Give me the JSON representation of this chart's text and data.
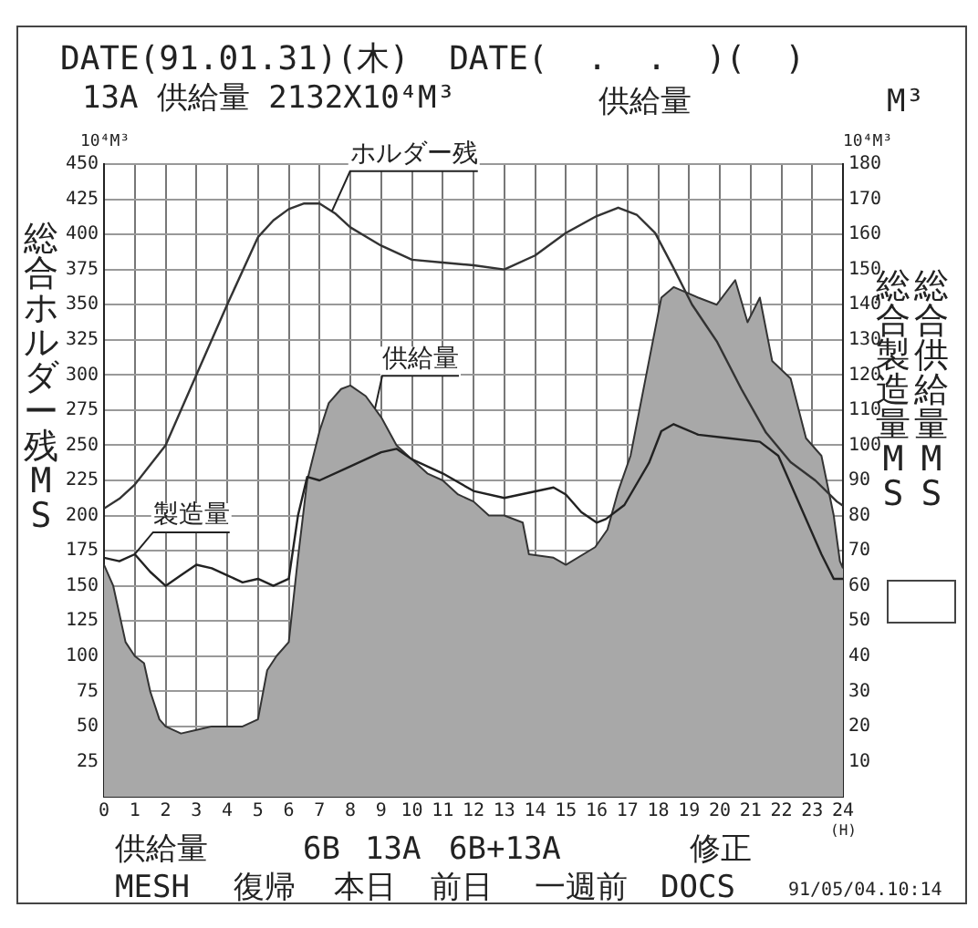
{
  "chart_data": {
    "type": "line",
    "title": "DATE(91.01.31)(木)  DATE(  .  .  )(  )",
    "subtitle": "13A 供給量 2132X10⁴M³",
    "xlabel": "(H)",
    "ylabel": "総合ホルダー残MS",
    "y2label": "総合製造量MS",
    "annotations": [
      "10⁴M³",
      "10⁴M³",
      "供給量",
      "M³",
      "総合供給量MS",
      "供給量",
      "6B",
      "13A",
      "6B+13A",
      "修正",
      "MESH",
      "復帰",
      "本日",
      "前日",
      "一週前",
      "DOCS",
      "91/05/04.10:14"
    ],
    "series": [
      {
        "name": "供給量",
        "type": "area",
        "axis": "y2",
        "color": "#a8a8a8",
        "x": [
          0,
          0.3,
          0.7,
          1,
          1.3,
          1.5,
          1.8,
          2,
          2.5,
          3,
          3.5,
          4,
          4.5,
          5,
          5.3,
          5.6,
          6,
          6.3,
          6.6,
          7,
          7.3,
          7.7,
          8,
          8.5,
          9,
          9.5,
          10,
          10.5,
          11,
          11.5,
          12,
          12.5,
          13,
          13.6,
          13.8,
          14.6,
          15,
          15.95,
          16.35,
          16.7,
          17.1,
          17.3,
          17.7,
          18.1,
          18.5,
          19.3,
          19.9,
          20.5,
          20.9,
          21.3,
          21.7,
          22.3,
          22.8,
          23.3,
          23.7,
          23.9,
          24
        ],
        "values": [
          66,
          60,
          44,
          40,
          38,
          30,
          22,
          20,
          18,
          19,
          20,
          20,
          20,
          22,
          36,
          40,
          44,
          68,
          90,
          104,
          112,
          116,
          117,
          114,
          108,
          100,
          96,
          92,
          90,
          86,
          84,
          80,
          80,
          78,
          69,
          68,
          66,
          71,
          76,
          87,
          97,
          106,
          124,
          142,
          145,
          142,
          140,
          147,
          135,
          142,
          124,
          119,
          102,
          97,
          80,
          67,
          65
        ]
      },
      {
        "name": "ホルダー残",
        "type": "line",
        "color": "#333333",
        "x": [
          0,
          0.5,
          1,
          2,
          3,
          4,
          5,
          5.5,
          6,
          6.5,
          7,
          7.5,
          8,
          9,
          10,
          11,
          12,
          13,
          14,
          15,
          16,
          16.7,
          17.3,
          17.9,
          18.5,
          19.1,
          19.9,
          20.7,
          21.5,
          22.3,
          23.1,
          23.8,
          24
        ],
        "values": [
          205,
          212,
          222,
          250,
          300,
          350,
          398,
          410,
          418,
          422,
          422,
          415,
          405,
          392,
          382,
          380,
          378,
          375,
          385,
          401,
          413,
          419,
          414,
          401,
          376,
          350,
          324,
          290,
          259,
          238,
          225,
          210,
          207
        ]
      },
      {
        "name": "製造量",
        "type": "line",
        "axis": "y2",
        "color": "#222222",
        "x": [
          0,
          0.5,
          1,
          1.5,
          2,
          2.5,
          3,
          3.5,
          4,
          4.5,
          5,
          5.5,
          6,
          6.3,
          6.6,
          7,
          8,
          9,
          9.5,
          10,
          11,
          12,
          13,
          14.6,
          15,
          15.5,
          16,
          16.3,
          16.9,
          17.7,
          18.1,
          18.5,
          19.3,
          20.3,
          21.3,
          21.9,
          22.7,
          23.3,
          23.7,
          24
        ],
        "values": [
          68,
          67,
          69,
          64,
          60,
          63,
          66,
          65,
          63,
          61,
          62,
          60,
          62,
          80,
          91,
          90,
          94,
          98,
          99,
          96,
          92,
          87,
          85,
          88,
          86,
          81,
          78,
          79,
          83,
          95,
          104,
          106,
          103,
          102,
          101,
          97,
          81,
          69,
          62,
          62
        ]
      }
    ],
    "xlim": [
      0,
      24
    ],
    "xticks": [
      0,
      1,
      2,
      3,
      4,
      5,
      6,
      7,
      8,
      9,
      10,
      11,
      12,
      13,
      14,
      15,
      16,
      17,
      18,
      19,
      20,
      21,
      22,
      23,
      24
    ],
    "ylim": [
      0,
      450
    ],
    "yticks": [
      25,
      50,
      75,
      100,
      125,
      150,
      175,
      200,
      225,
      250,
      275,
      300,
      325,
      350,
      375,
      400,
      425,
      450
    ],
    "y2lim": [
      0,
      180
    ],
    "y2ticks": [
      10,
      20,
      30,
      40,
      50,
      60,
      70,
      80,
      90,
      100,
      110,
      120,
      130,
      140,
      150,
      160,
      170,
      180
    ],
    "grid": true,
    "legend": false,
    "marker": "none",
    "line_style": "solid"
  }
}
